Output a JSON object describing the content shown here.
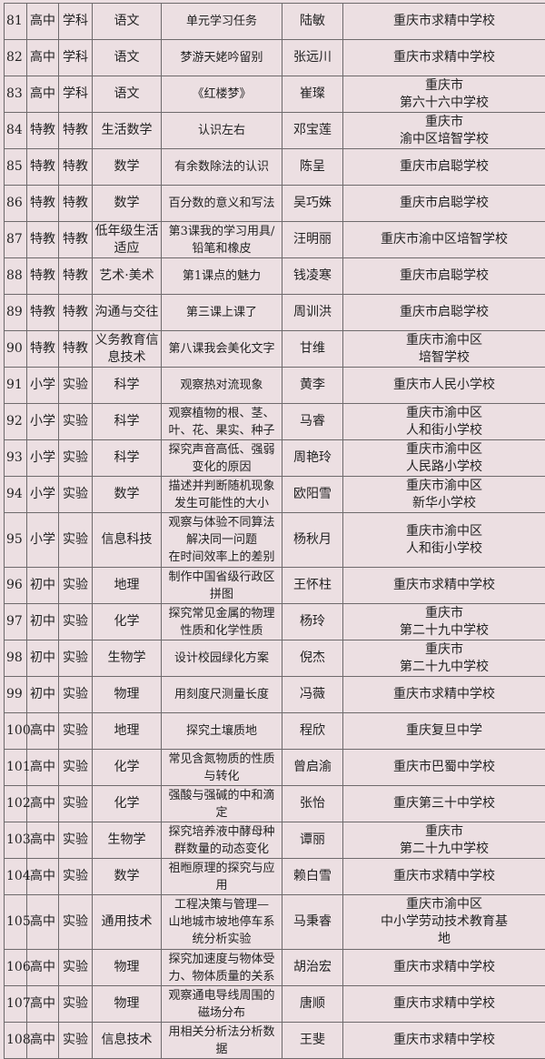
{
  "table": {
    "rows": [
      [
        "81",
        "高中",
        "学科",
        "语文",
        "单元学习任务",
        "陆敏",
        "重庆市求精中学校"
      ],
      [
        "82",
        "高中",
        "学科",
        "语文",
        "梦游天姥吟留别",
        "张远川",
        "重庆市求精中学校"
      ],
      [
        "83",
        "高中",
        "学科",
        "语文",
        "《红楼梦》",
        "崔璨",
        "重庆市\n第六十六中学校"
      ],
      [
        "84",
        "特教",
        "特教",
        "生活数学",
        "认识左右",
        "邓宝莲",
        "重庆市\n渝中区培智学校"
      ],
      [
        "85",
        "特教",
        "特教",
        "数学",
        "有余数除法的认识",
        "陈呈",
        "重庆市启聪学校"
      ],
      [
        "86",
        "特教",
        "特教",
        "数学",
        "百分数的意义和写法",
        "吴巧姝",
        "重庆市启聪学校"
      ],
      [
        "87",
        "特教",
        "特教",
        "低年级生活\n适应",
        "第3课我的学习用具/\n铅笔和橡皮",
        "汪明丽",
        "重庆市渝中区培智学校"
      ],
      [
        "88",
        "特教",
        "特教",
        "艺术·美术",
        "第1课点的魅力",
        "钱凌寒",
        "重庆市启聪学校"
      ],
      [
        "89",
        "特教",
        "特教",
        "沟通与交往",
        "第三课上课了",
        "周训洪",
        "重庆市启聪学校"
      ],
      [
        "90",
        "特教",
        "特教",
        "义务教育信\n息技术",
        "第八课我会美化文字",
        "甘维",
        "重庆市渝中区\n培智学校"
      ],
      [
        "91",
        "小学",
        "实验",
        "科学",
        "观察热对流现象",
        "黄李",
        "重庆市人民小学校"
      ],
      [
        "92",
        "小学",
        "实验",
        "科学",
        "观察植物的根、茎、\n叶、花、果实、种子",
        "马睿",
        "重庆市渝中区\n人和街小学校"
      ],
      [
        "93",
        "小学",
        "实验",
        "科学",
        "探究声音高低、强弱\n变化的原因",
        "周艳玲",
        "重庆市渝中区\n人民路小学校"
      ],
      [
        "94",
        "小学",
        "实验",
        "数学",
        "描述并判断随机现象\n发生可能性的大小",
        "欧阳雪",
        "重庆市渝中区\n新华小学校"
      ],
      [
        "95",
        "小学",
        "实验",
        "信息科技",
        "观察与体验不同算法\n解决同一问题\n在时间效率上的差别",
        "杨秋月",
        "重庆市渝中区\n人和街小学校"
      ],
      [
        "96",
        "初中",
        "实验",
        "地理",
        "制作中国省级行政区\n拼图",
        "王怀柱",
        "重庆市求精中学校"
      ],
      [
        "97",
        "初中",
        "实验",
        "化学",
        "探究常见金属的物理\n性质和化学性质",
        "杨玲",
        "重庆市\n第二十九中学校"
      ],
      [
        "98",
        "初中",
        "实验",
        "生物学",
        "设计校园绿化方案",
        "倪杰",
        "重庆市\n第二十九中学校"
      ],
      [
        "99",
        "初中",
        "实验",
        "物理",
        "用刻度尺测量长度",
        "冯薇",
        "重庆市求精中学校"
      ],
      [
        "100",
        "高中",
        "实验",
        "地理",
        "探究土壤质地",
        "程欣",
        "重庆复旦中学"
      ],
      [
        "101",
        "高中",
        "实验",
        "化学",
        "常见含氮物质的性质\n与转化",
        "曾启渝",
        "重庆市巴蜀中学校"
      ],
      [
        "102",
        "高中",
        "实验",
        "化学",
        "强酸与强碱的中和滴\n定",
        "张怡",
        "重庆第三十中学校"
      ],
      [
        "103",
        "高中",
        "实验",
        "生物学",
        "探究培养液中酵母种\n群数量的动态变化",
        "谭丽",
        "重庆市\n第二十九中学校"
      ],
      [
        "104",
        "高中",
        "实验",
        "数学",
        "祖暅原理的探究与应\n用",
        "赖白雪",
        "重庆市求精中学校"
      ],
      [
        "105",
        "高中",
        "实验",
        "通用技术",
        "工程决策与管理—\n山地城市坡地停车系\n统分析实验",
        "马秉睿",
        "重庆市渝中区\n中小学劳动技术教育基\n地"
      ],
      [
        "106",
        "高中",
        "实验",
        "物理",
        "探究加速度与物体受\n力、物体质量的关系",
        "胡治宏",
        "重庆市求精中学校"
      ],
      [
        "107",
        "高中",
        "实验",
        "物理",
        "观察通电导线周围的\n磁场分布",
        "唐顺",
        "重庆市求精中学校"
      ],
      [
        "108",
        "高中",
        "实验",
        "信息技术",
        "用相关分析法分析数\n据",
        "王斐",
        "重庆市求精中学校"
      ]
    ]
  }
}
